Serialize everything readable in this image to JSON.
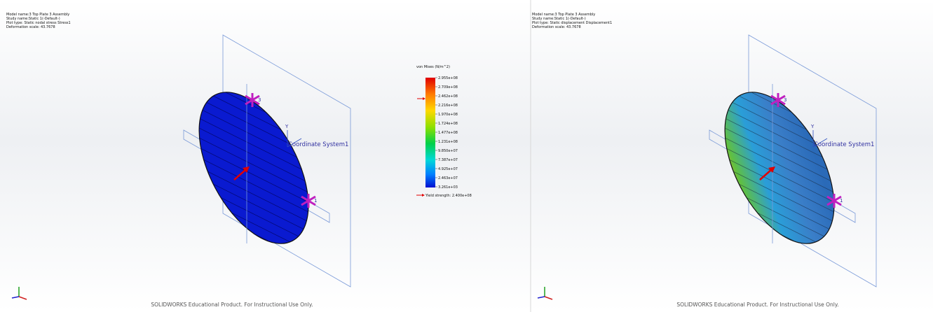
{
  "panels": [
    {
      "header": {
        "lines": [
          "Model name:3 Top Plate 3 Assembly",
          "Study name:Static 1(-Default-)",
          "Plot type: Static nodal stress Stress1",
          "Deformation scale: 43.7678"
        ]
      },
      "axis_label": "Y",
      "coordinate_label": "Coordinate System1",
      "fixture_labels": [
        "3",
        "1"
      ],
      "footer": "SOLIDWORKS Educational Product. For Instructional Use Only."
    },
    {
      "header": {
        "lines": [
          "Model name:3 Top Plate 3 Assembly",
          "Study name:Static 1(-Default-)",
          "Plot type: Static displacement Displacement1",
          "Deformation scale: 43.7678"
        ]
      },
      "axis_label": "Y",
      "coordinate_label": "Coordinate System1",
      "fixture_labels": [
        "3",
        "1"
      ],
      "footer": "SOLIDWORKS Educational Product. For Instructional Use Only."
    }
  ],
  "legend": {
    "title": "von Mises (N/m^2)",
    "values": [
      "2.955e+08",
      "2.709e+08",
      "2.462e+08",
      "2.216e+08",
      "1.970e+08",
      "1.724e+08",
      "1.477e+08",
      "1.231e+08",
      "9.850e+07",
      "7.387e+07",
      "4.925e+07",
      "2.463e+07",
      "3.261e+03"
    ],
    "yield_label": "Yield strength: 2.400e+08"
  }
}
